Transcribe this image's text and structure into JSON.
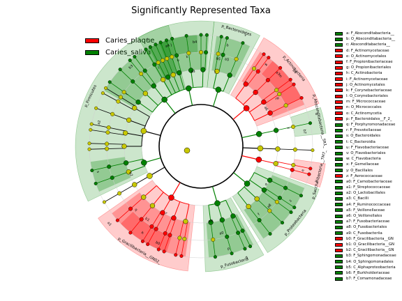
{
  "title": "Significantly Represented Taxa",
  "colors": {
    "caries_plaque": "#ff0000",
    "caries_saliva": "#008000",
    "nonsig": "#c8c800"
  },
  "legend": [
    {
      "label": "Caries_plaque",
      "color": "#ff0000"
    },
    {
      "label": "Caries_saliva",
      "color": "#008000"
    }
  ],
  "taxa_key": [
    {
      "label": "a: F_Absconditabacteria__",
      "group": "saliva"
    },
    {
      "label": "b: O_Absconditabacteria__",
      "group": "saliva"
    },
    {
      "label": "c: Absconditabacteria__",
      "group": "saliva"
    },
    {
      "label": "d: F_Actinomycetaceae",
      "group": "plaque"
    },
    {
      "label": "e: O_Actinomycetales",
      "group": "plaque"
    },
    {
      "label": "f: F_Propionibacteriaceae",
      "group": "plaque"
    },
    {
      "label": "g: O_Propionibacteriales",
      "group": "plaque"
    },
    {
      "label": "h: C_Actinobacteria",
      "group": "plaque"
    },
    {
      "label": "i: F_Actinomycetaceae",
      "group": "plaque"
    },
    {
      "label": "j: O_Actinomycetales",
      "group": "plaque"
    },
    {
      "label": "k: F_Corynebacteriaceae",
      "group": "plaque"
    },
    {
      "label": "l: O_Corynebacteriales",
      "group": "plaque"
    },
    {
      "label": "m: F_Micrococcaceae",
      "group": "plaque"
    },
    {
      "label": "n: O_Micrococcales",
      "group": "plaque"
    },
    {
      "label": "o: C_Actinomycetia",
      "group": "plaque"
    },
    {
      "label": "p: F_Bacteroidales__F_2_",
      "group": "plaque"
    },
    {
      "label": "q: F_Porphyromonadaceae",
      "group": "saliva"
    },
    {
      "label": "r: F_Prevotellaceae",
      "group": "saliva"
    },
    {
      "label": "s: O_Bacteroidales",
      "group": "saliva"
    },
    {
      "label": "t: C_Bacteroidia",
      "group": "saliva"
    },
    {
      "label": "u: F_Flavobacteriaceae",
      "group": "saliva"
    },
    {
      "label": "v: O_Flavobacteriales",
      "group": "saliva"
    },
    {
      "label": "w: C_Flavobacteria",
      "group": "saliva"
    },
    {
      "label": "x: F_Gemellaceae",
      "group": "saliva"
    },
    {
      "label": "y: O_Bacillales",
      "group": "saliva"
    },
    {
      "label": "z: F_Aerococcaceae",
      "group": "plaque"
    },
    {
      "label": "a0: F_Carnobacteriaceae",
      "group": "saliva"
    },
    {
      "label": "a1: F_Streptococcaceae",
      "group": "saliva"
    },
    {
      "label": "a2: O_Lactobacillales",
      "group": "saliva"
    },
    {
      "label": "a3: C_Bacilli",
      "group": "saliva"
    },
    {
      "label": "a4: F_Ruminococcaceae",
      "group": "saliva"
    },
    {
      "label": "a5: F_Veillonellaceae",
      "group": "saliva"
    },
    {
      "label": "a6: O_Veillonellales",
      "group": "saliva"
    },
    {
      "label": "a7: F_Fusobacteriaceae",
      "group": "saliva"
    },
    {
      "label": "a8: O_Fusobacteriales",
      "group": "saliva"
    },
    {
      "label": "a9: C_Fusobacteriia",
      "group": "saliva"
    },
    {
      "label": "b0: F_Gracilibacteria__GN",
      "group": "plaque"
    },
    {
      "label": "b1: O_Gracilibacteria__GN",
      "group": "plaque"
    },
    {
      "label": "b2: C_Gracilibacteria__GN",
      "group": "plaque"
    },
    {
      "label": "b3: F_Sphingomonadaceae",
      "group": "saliva"
    },
    {
      "label": "b4: O_Sphingomonadales",
      "group": "saliva"
    },
    {
      "label": "b5: C_Alphaproteobacteria",
      "group": "saliva"
    },
    {
      "label": "b6: F_Burkholderiaceae",
      "group": "saliva"
    },
    {
      "label": "b7: F_Comamonadaceae",
      "group": "saliva"
    }
  ],
  "clade_labels": [
    {
      "text": "p_Bacteroidetes",
      "group": "saliva"
    },
    {
      "text": "p_Actinobacteria",
      "group": "plaque"
    },
    {
      "text": "p_Absconditabacteria__SR1_",
      "group": "saliva"
    },
    {
      "text": "p_Firmicutes",
      "group": "saliva"
    },
    {
      "text": "p_Gracilibacteria__GN02_",
      "group": "plaque"
    },
    {
      "text": "p_Fusobacteria",
      "group": "saliva"
    },
    {
      "text": "p_Proteobacteria",
      "group": "saliva"
    },
    {
      "text": "p_Saccharibacteria__TM7_",
      "group": "plaque"
    }
  ]
}
